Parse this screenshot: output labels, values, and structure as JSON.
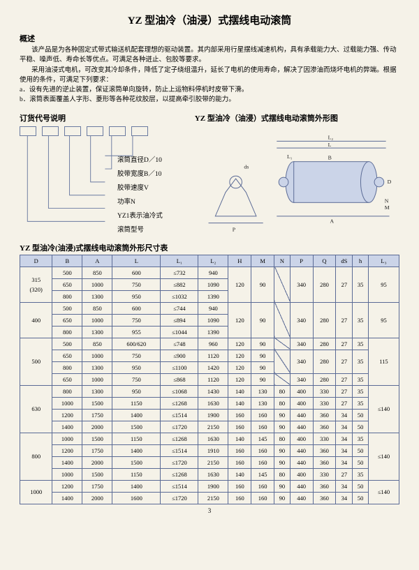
{
  "title": "YZ 型油冷（油浸）式摆线电动滚筒",
  "overview_head": "概述",
  "overview_p1": "该产品是为各种固定式带式输送机配套理想的驱动装置。其内部采用行星摆线减速机构，具有承载能力大、过载能力强、传动平稳、噪声低、寿命长等优点。可满足各种迸止、包胶等要求。",
  "overview_p2": "采用油浸式电机，可改变其冷却条件，降低了定子绕组温升，延长了电机的使用寿命，解决了因渗油而烧坏电机的弊端。根据使用的条件，可满足下列要求：",
  "overview_a": "a．设有先进的逆止装置，保证滚筒单向旋转，防止上运物料停机时皮带下滑。",
  "overview_b": "b．滚筒表面覆盖人字形、菱形等各种花纹胶层，以提高牵引胶带的能力。",
  "order_head": "订货代号说明",
  "outline_head": "YZ 型油冷（油浸）式摆线电动滚筒外形图",
  "ladder_labels": [
    "滚筒直径D／10",
    "胶带宽度B／10",
    "胶带速度V",
    "功率N",
    "YZ1表示油冷式",
    "滚筒型号"
  ],
  "table_head": "YZ 型油冷(油浸)式摆线电动滚筒外形尺寸表",
  "columns": [
    "D",
    "B",
    "A",
    "L",
    "L₁",
    "L₂",
    "H",
    "M",
    "N",
    "P",
    "Q",
    "dS",
    "h",
    "L₃"
  ],
  "rows": [
    {
      "D": "315\n(320)",
      "span": 3,
      "r": [
        [
          "500",
          "850",
          "600",
          "≤732",
          "940"
        ],
        [
          "650",
          "1000",
          "750",
          "≤882",
          "1090"
        ],
        [
          "800",
          "1300",
          "950",
          "≤1032",
          "1390"
        ]
      ],
      "tail": [
        "120",
        "90",
        "DIAG",
        "340",
        "280",
        "27",
        "35",
        "95"
      ]
    },
    {
      "D": "400",
      "span": 3,
      "r": [
        [
          "500",
          "850",
          "600",
          "≤744",
          "940"
        ],
        [
          "650",
          "1000",
          "750",
          "≤894",
          "1090"
        ],
        [
          "800",
          "1300",
          "955",
          "≤1044",
          "1390"
        ]
      ],
      "tail": [
        "120",
        "90",
        "DIAG",
        "340",
        "280",
        "27",
        "35",
        "95"
      ]
    },
    {
      "D": "500",
      "span": 4,
      "L3": "115",
      "groups": [
        {
          "r": [
            [
              "500",
              "850",
              "600/620",
              "≤748",
              "960",
              "120",
              "90"
            ]
          ],
          "tail": [
            "DIAG",
            "340",
            "280",
            "27",
            "35"
          ]
        },
        {
          "r": [
            [
              "650",
              "1000",
              "750",
              "≤900",
              "1120",
              "120",
              "90"
            ],
            [
              "800",
              "1300",
              "950",
              "≤1100",
              "1420",
              "120",
              "90"
            ]
          ],
          "tail": [
            "DIAG",
            "340",
            "280",
            "27",
            "35"
          ]
        },
        {
          "r": [
            [
              "650",
              "1000",
              "750",
              "≤868",
              "1120",
              "120",
              "90",
              "DIAG",
              "340",
              "280",
              "27",
              "35"
            ]
          ]
        }
      ]
    },
    {
      "D": "630",
      "span": 4,
      "L3": "≤140",
      "rows": [
        [
          "800",
          "1300",
          "950",
          "≤1068",
          "1430",
          "140",
          "130",
          "80",
          "400",
          "330",
          "27",
          "35"
        ],
        [
          "1000",
          "1500",
          "1150",
          "≤1268",
          "1630",
          "140",
          "130",
          "80",
          "400",
          "330",
          "27",
          "35"
        ],
        [
          "1200",
          "1750",
          "1400",
          "≤1514",
          "1900",
          "160",
          "160",
          "90",
          "440",
          "360",
          "34",
          "50"
        ],
        [
          "1400",
          "2000",
          "1500",
          "≤1720",
          "2150",
          "160",
          "160",
          "90",
          "440",
          "360",
          "34",
          "50"
        ]
      ]
    },
    {
      "D": "800",
      "span": 4,
      "L3": "≤140",
      "rows": [
        [
          "1000",
          "1500",
          "1150",
          "≤1268",
          "1630",
          "140",
          "145",
          "80",
          "400",
          "330",
          "34",
          "35"
        ],
        [
          "1200",
          "1750",
          "1400",
          "≤1514",
          "1910",
          "160",
          "160",
          "90",
          "440",
          "360",
          "34",
          "50"
        ],
        [
          "1400",
          "2000",
          "1500",
          "≤1720",
          "2150",
          "160",
          "160",
          "90",
          "440",
          "360",
          "34",
          "50"
        ],
        [
          "1000",
          "1500",
          "1150",
          "≤1268",
          "1630",
          "140",
          "145",
          "80",
          "400",
          "330",
          "27",
          "35"
        ]
      ]
    },
    {
      "D": "1000",
      "span": 2,
      "L3": "≤140",
      "rows": [
        [
          "1200",
          "1750",
          "1400",
          "≤1514",
          "1900",
          "160",
          "160",
          "90",
          "440",
          "360",
          "34",
          "50"
        ],
        [
          "1400",
          "2000",
          "1600",
          "≤1720",
          "2150",
          "160",
          "160",
          "90",
          "440",
          "360",
          "34",
          "50"
        ]
      ]
    }
  ],
  "page_number": "3"
}
